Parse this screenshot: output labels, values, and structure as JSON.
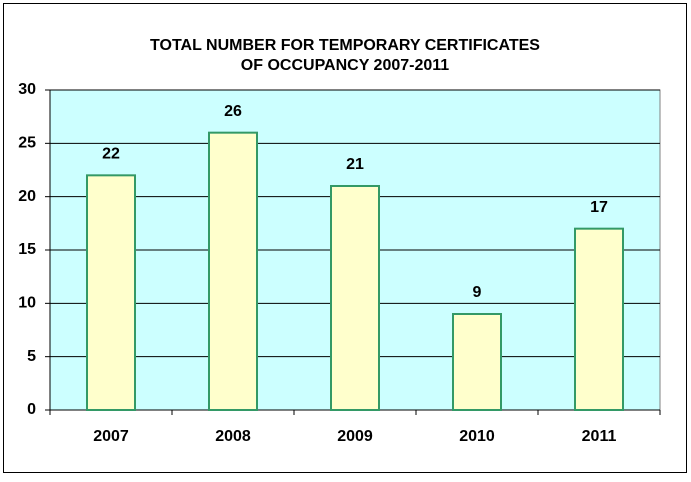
{
  "chart_data": {
    "type": "bar",
    "title": [
      "TOTAL NUMBER FOR TEMPORARY CERTIFICATES",
      "OF OCCUPANCY 2007-2011"
    ],
    "categories": [
      "2007",
      "2008",
      "2009",
      "2010",
      "2011"
    ],
    "values": [
      22,
      26,
      21,
      9,
      17
    ],
    "color": "#ffffcc",
    "edge_color": "#339966",
    "plot_background": "#ccffff",
    "ylim": [
      0,
      30
    ],
    "yticks": [
      0,
      5,
      10,
      15,
      20,
      25,
      30
    ],
    "grid": true
  }
}
